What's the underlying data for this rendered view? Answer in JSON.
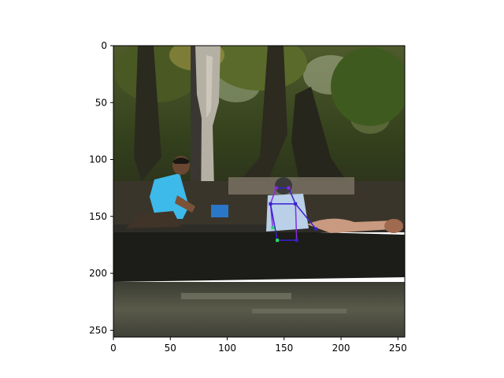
{
  "figure": {
    "x_ticks": [
      "0",
      "50",
      "100",
      "150",
      "200",
      "250"
    ],
    "y_ticks": [
      "0",
      "50",
      "100",
      "150",
      "200",
      "250"
    ],
    "x_range": [
      0,
      256
    ],
    "y_range": [
      0,
      256
    ],
    "y_axis_inverted": true,
    "axis_color": "#000000",
    "background": "#ffffff"
  },
  "image": {
    "scene": "river-boat-with-two-people",
    "colors": {
      "foliage": "#3d4a1e",
      "trunk": "#2c2a20",
      "water": "#4a4a3c",
      "boat_hull": "#1b1b17",
      "shirt_blue": "#38b8e8",
      "skeleton_blue": "#3a1fd0",
      "skeleton_purple": "#8a2be2",
      "skeleton_green": "#20e060"
    }
  },
  "overlay": {
    "type": "pose-skeleton",
    "keypoints": [
      {
        "id": "head-left",
        "x": 143,
        "y": 125
      },
      {
        "id": "head-right",
        "x": 154,
        "y": 125
      },
      {
        "id": "shoulder-left",
        "x": 138,
        "y": 139
      },
      {
        "id": "shoulder-right",
        "x": 160,
        "y": 139
      },
      {
        "id": "hip-left",
        "x": 140,
        "y": 160
      },
      {
        "id": "hand-right",
        "x": 178,
        "y": 161
      },
      {
        "id": "knee-left",
        "x": 144,
        "y": 171
      },
      {
        "id": "knee-right",
        "x": 161,
        "y": 171
      }
    ],
    "edges": [
      [
        "head-left",
        "head-right"
      ],
      [
        "head-left",
        "shoulder-left"
      ],
      [
        "head-right",
        "shoulder-right"
      ],
      [
        "shoulder-left",
        "shoulder-right"
      ],
      [
        "shoulder-left",
        "hip-left"
      ],
      [
        "shoulder-right",
        "hand-right"
      ],
      [
        "shoulder-left",
        "knee-left"
      ],
      [
        "shoulder-right",
        "knee-right"
      ],
      [
        "knee-left",
        "knee-right"
      ]
    ]
  }
}
